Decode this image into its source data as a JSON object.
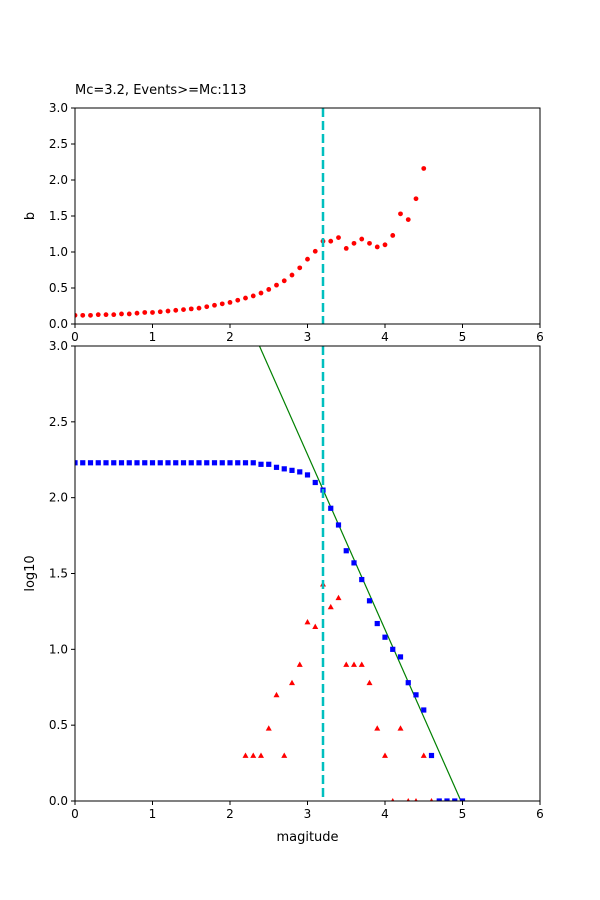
{
  "chart_data": [
    {
      "type": "scatter",
      "title": "Mc=3.2, Events>=Mc:113",
      "xlabel": "",
      "ylabel": "b",
      "xlim": [
        0,
        6
      ],
      "ylim": [
        0,
        3.0
      ],
      "xticks": [
        "0",
        "1",
        "2",
        "3",
        "4",
        "5",
        "6"
      ],
      "yticks": [
        "0.0",
        "0.5",
        "1.0",
        "1.5",
        "2.0",
        "2.5",
        "3.0"
      ],
      "grid": false,
      "mc_line": {
        "x": 3.2,
        "color": "#00bfbf"
      },
      "series": [
        {
          "color": "#ff0000",
          "marker": "circle",
          "x": [
            0.0,
            0.1,
            0.2,
            0.3,
            0.4,
            0.5,
            0.6,
            0.7,
            0.8,
            0.9,
            1.0,
            1.1,
            1.2,
            1.3,
            1.4,
            1.5,
            1.6,
            1.7,
            1.8,
            1.9,
            2.0,
            2.1,
            2.2,
            2.3,
            2.4,
            2.5,
            2.6,
            2.7,
            2.8,
            2.9,
            3.0,
            3.1,
            3.2,
            3.3,
            3.4,
            3.5,
            3.6,
            3.7,
            3.8,
            3.9,
            4.0,
            4.1,
            4.2,
            4.3,
            4.4,
            4.5
          ],
          "y": [
            0.12,
            0.12,
            0.12,
            0.13,
            0.13,
            0.13,
            0.14,
            0.14,
            0.15,
            0.16,
            0.16,
            0.17,
            0.18,
            0.19,
            0.2,
            0.21,
            0.22,
            0.24,
            0.26,
            0.28,
            0.3,
            0.33,
            0.36,
            0.39,
            0.43,
            0.48,
            0.54,
            0.6,
            0.68,
            0.78,
            0.9,
            1.01,
            1.15,
            1.15,
            1.2,
            1.05,
            1.12,
            1.18,
            1.12,
            1.07,
            1.1,
            1.23,
            1.53,
            1.45,
            1.74,
            2.16
          ]
        }
      ]
    },
    {
      "type": "scatter",
      "title": "",
      "xlabel": "magitude",
      "ylabel": "log10",
      "xlim": [
        0,
        6
      ],
      "ylim": [
        0,
        3.0
      ],
      "xticks": [
        "0",
        "1",
        "2",
        "3",
        "4",
        "5",
        "6"
      ],
      "yticks": [
        "0.0",
        "0.5",
        "1.0",
        "1.5",
        "2.0",
        "2.5",
        "3.0"
      ],
      "grid": false,
      "mc_line": {
        "x": 3.2,
        "color": "#00bfbf"
      },
      "fit_line": {
        "color": "#008000",
        "x": [
          2.38,
          4.98
        ],
        "y": [
          3.0,
          0.0
        ]
      },
      "series": [
        {
          "color": "#0000ff",
          "marker": "square",
          "x": [
            0.0,
            0.1,
            0.2,
            0.3,
            0.4,
            0.5,
            0.6,
            0.7,
            0.8,
            0.9,
            1.0,
            1.1,
            1.2,
            1.3,
            1.4,
            1.5,
            1.6,
            1.7,
            1.8,
            1.9,
            2.0,
            2.1,
            2.2,
            2.3,
            2.4,
            2.5,
            2.6,
            2.7,
            2.8,
            2.9,
            3.0,
            3.1,
            3.2,
            3.3,
            3.4,
            3.5,
            3.6,
            3.7,
            3.8,
            3.9,
            4.0,
            4.1,
            4.2,
            4.3,
            4.4,
            4.5,
            4.6,
            4.7,
            4.8,
            4.9,
            5.0
          ],
          "y": [
            2.23,
            2.23,
            2.23,
            2.23,
            2.23,
            2.23,
            2.23,
            2.23,
            2.23,
            2.23,
            2.23,
            2.23,
            2.23,
            2.23,
            2.23,
            2.23,
            2.23,
            2.23,
            2.23,
            2.23,
            2.23,
            2.23,
            2.23,
            2.23,
            2.22,
            2.22,
            2.2,
            2.19,
            2.18,
            2.17,
            2.15,
            2.1,
            2.05,
            1.93,
            1.82,
            1.65,
            1.57,
            1.46,
            1.32,
            1.17,
            1.08,
            1.0,
            0.95,
            0.78,
            0.7,
            0.6,
            0.3,
            0.0,
            0.0,
            0.0,
            0.0
          ]
        },
        {
          "color": "#ff0000",
          "marker": "triangle",
          "x": [
            2.2,
            2.3,
            2.4,
            2.5,
            2.6,
            2.7,
            2.8,
            2.9,
            3.0,
            3.1,
            3.2,
            3.3,
            3.4,
            3.5,
            3.6,
            3.7,
            3.8,
            3.9,
            4.0,
            4.1,
            4.2,
            4.3,
            4.4,
            4.5,
            4.6
          ],
          "y": [
            0.3,
            0.3,
            0.3,
            0.48,
            0.7,
            0.3,
            0.78,
            0.9,
            1.18,
            1.15,
            1.43,
            1.28,
            1.34,
            0.9,
            0.9,
            0.9,
            0.78,
            0.48,
            0.3,
            0.0,
            0.48,
            0.0,
            0.0,
            0.3,
            0.0
          ]
        }
      ]
    }
  ]
}
